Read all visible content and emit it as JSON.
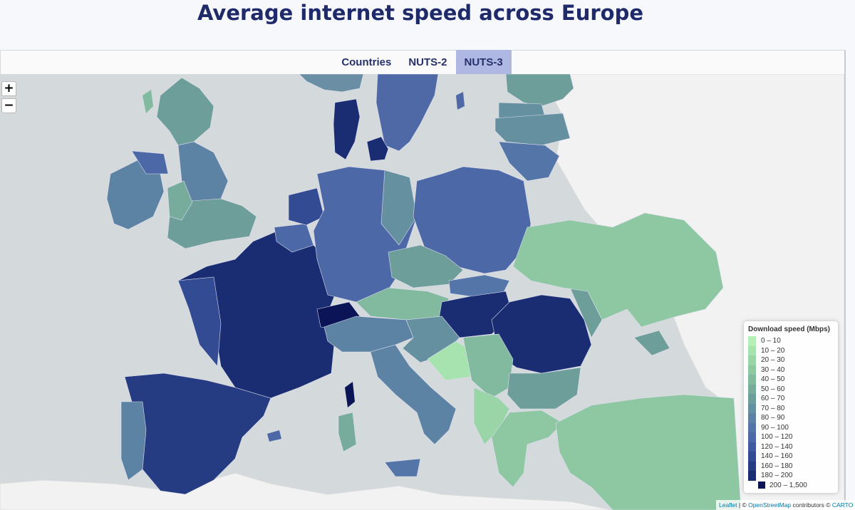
{
  "title": "Average internet speed across Europe",
  "tabs": [
    {
      "label": "Countries",
      "active": false
    },
    {
      "label": "NUTS-2",
      "active": false
    },
    {
      "label": "NUTS-3",
      "active": true
    }
  ],
  "zoom": {
    "in_label": "+",
    "out_label": "−"
  },
  "legend": {
    "title": "Download speed (Mbps)",
    "items": [
      {
        "label": "0 – 10",
        "color": "#b4f0b6"
      },
      {
        "label": "10 – 20",
        "color": "#a6e3ae"
      },
      {
        "label": "20 – 30",
        "color": "#9ad5a8"
      },
      {
        "label": "30 – 40",
        "color": "#8ec8a3"
      },
      {
        "label": "40 – 50",
        "color": "#82ba9f"
      },
      {
        "label": "50 – 60",
        "color": "#77ac9c"
      },
      {
        "label": "60 – 70",
        "color": "#6d9e9a"
      },
      {
        "label": "70 – 80",
        "color": "#6590a0"
      },
      {
        "label": "80 – 90",
        "color": "#5c82a4"
      },
      {
        "label": "90 – 100",
        "color": "#5475a7"
      },
      {
        "label": "100 – 120",
        "color": "#4c68a6"
      },
      {
        "label": "120 – 140",
        "color": "#405aa0"
      },
      {
        "label": "140 – 160",
        "color": "#324b92"
      },
      {
        "label": "160 – 180",
        "color": "#253c82"
      },
      {
        "label": "180 – 200",
        "color": "#1a2d72"
      },
      {
        "label": "200 – 1,500",
        "color": "#0b1457"
      }
    ]
  },
  "attribution": {
    "leaflet": "Leaflet",
    "separator": " | © ",
    "osm": "OpenStreetMap",
    "contributors": " contributors © ",
    "carto": "CARTO"
  },
  "map_colors": {
    "sea": "#d4dadc",
    "land_nodata": "#f2f2f2"
  }
}
